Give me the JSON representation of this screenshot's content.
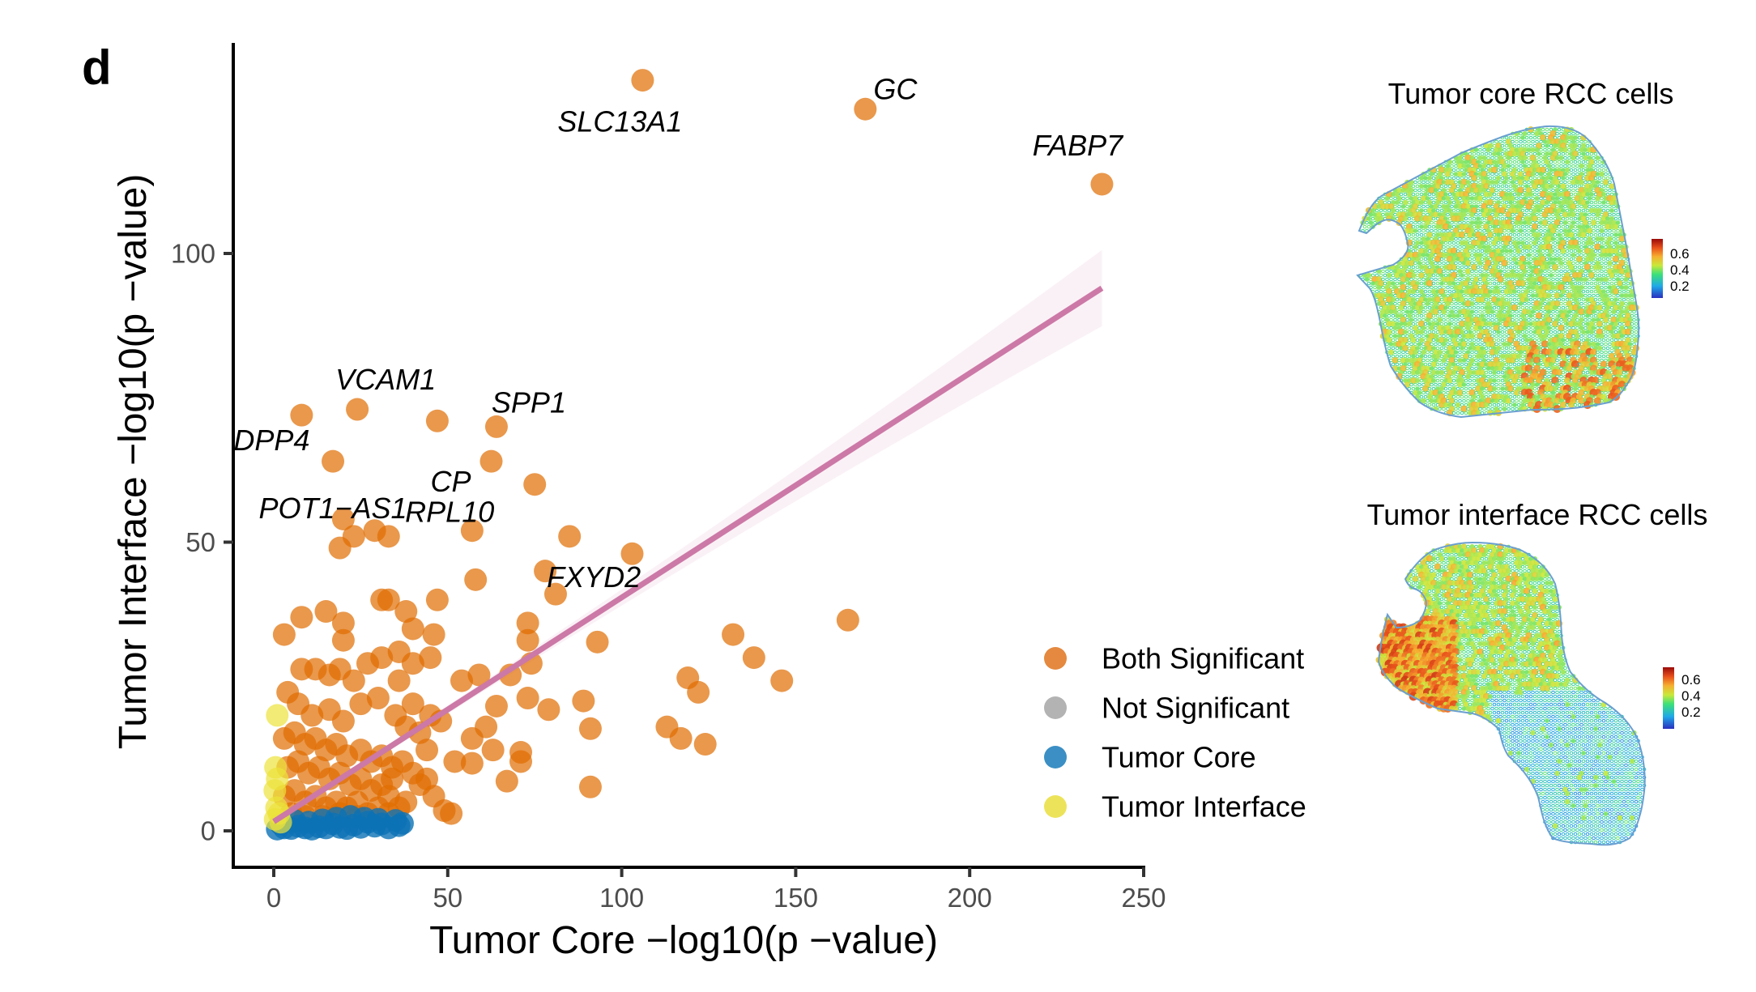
{
  "panel_letter": "d",
  "chart_data": {
    "type": "scatter",
    "xlabel": "Tumor Core  −log10(p −value)",
    "ylabel": "Tumor Interface  −log10(p −value)",
    "xlim": [
      -12,
      250
    ],
    "ylim": [
      -6,
      136
    ],
    "xticks": [
      0,
      50,
      100,
      150,
      200,
      250
    ],
    "yticks": [
      0,
      50,
      100
    ],
    "grid": false,
    "legend_placement": "right",
    "legend": [
      {
        "label": "Both Significant",
        "color": "#e4893f"
      },
      {
        "label": "Not Significant",
        "color": "#b3b3b3"
      },
      {
        "label": "Tumor Core",
        "color": "#3b8fc4"
      },
      {
        "label": "Tumor Interface",
        "color": "#ece35a"
      }
    ],
    "fit_line": {
      "color": "#cc79a7",
      "x": [
        0,
        238
      ],
      "y": [
        1.6,
        94
      ],
      "ci_at_end": [
        88,
        100
      ]
    },
    "labeled_genes": [
      {
        "gene": "SLC13A1",
        "x": 106,
        "y": 130
      },
      {
        "gene": "GC",
        "x": 170,
        "y": 125
      },
      {
        "gene": "FABP7",
        "x": 238,
        "y": 112
      },
      {
        "gene": "VCAM1",
        "x": 24,
        "y": 73
      },
      {
        "gene": "DPP4",
        "x": 8,
        "y": 72
      },
      {
        "gene": "SPP1",
        "x": 64,
        "y": 70
      },
      {
        "gene": "POT1−AS1",
        "x": 17,
        "y": 64
      },
      {
        "gene": "CP",
        "x": 62.5,
        "y": 64
      },
      {
        "gene": "RPL10",
        "x": 75,
        "y": 60
      },
      {
        "gene": "FXYD2",
        "x": 85,
        "y": 51
      }
    ],
    "series": [
      {
        "name": "Both Significant",
        "color": "#e06c00",
        "points": [
          [
            106,
            130
          ],
          [
            170,
            125
          ],
          [
            238,
            112
          ],
          [
            24,
            73
          ],
          [
            8,
            72
          ],
          [
            47,
            71
          ],
          [
            64,
            70
          ],
          [
            17,
            64
          ],
          [
            62.5,
            64
          ],
          [
            75,
            60
          ],
          [
            85,
            51
          ],
          [
            103,
            48
          ],
          [
            165,
            36.5
          ],
          [
            132,
            34
          ],
          [
            138,
            30
          ],
          [
            146,
            26
          ],
          [
            119,
            26.5
          ],
          [
            122,
            24
          ],
          [
            113,
            18
          ],
          [
            117,
            16
          ],
          [
            124,
            15
          ],
          [
            89,
            22.5
          ],
          [
            91,
            17.7
          ],
          [
            91,
            7.6
          ],
          [
            93,
            32.7
          ],
          [
            78,
            45
          ],
          [
            81,
            41
          ],
          [
            57,
            52
          ],
          [
            58,
            43.5
          ],
          [
            73,
            36
          ],
          [
            73,
            33
          ],
          [
            74,
            29
          ],
          [
            54,
            26
          ],
          [
            59,
            27
          ],
          [
            68,
            27
          ],
          [
            73,
            23
          ],
          [
            79,
            21
          ],
          [
            64,
            21.6
          ],
          [
            61,
            18
          ],
          [
            57,
            16
          ],
          [
            63,
            14
          ],
          [
            71,
            13.6
          ],
          [
            71,
            12
          ],
          [
            67,
            8.6
          ],
          [
            49,
            3.5
          ],
          [
            51,
            3
          ],
          [
            52,
            12
          ],
          [
            57,
            11.7
          ],
          [
            20,
            54
          ],
          [
            19,
            49
          ],
          [
            23,
            51
          ],
          [
            29,
            52
          ],
          [
            33,
            51
          ],
          [
            3,
            34
          ],
          [
            8,
            37
          ],
          [
            15,
            38
          ],
          [
            20,
            36
          ],
          [
            20,
            33
          ],
          [
            31,
            40
          ],
          [
            33,
            40
          ],
          [
            38,
            38
          ],
          [
            47,
            40
          ],
          [
            46,
            34
          ],
          [
            40,
            35
          ],
          [
            36,
            31
          ],
          [
            31,
            30
          ],
          [
            27,
            29
          ],
          [
            40,
            29
          ],
          [
            45,
            30
          ],
          [
            8,
            28
          ],
          [
            12,
            28
          ],
          [
            16,
            27
          ],
          [
            19,
            28
          ],
          [
            23,
            26
          ],
          [
            25,
            22
          ],
          [
            4,
            24
          ],
          [
            7,
            22
          ],
          [
            11,
            20
          ],
          [
            16,
            21
          ],
          [
            20,
            19
          ],
          [
            30,
            23
          ],
          [
            35,
            20
          ],
          [
            38,
            18
          ],
          [
            42,
            17
          ],
          [
            44,
            14
          ],
          [
            45,
            20
          ],
          [
            48,
            19
          ],
          [
            40,
            22
          ],
          [
            36,
            26
          ],
          [
            3,
            16
          ],
          [
            6,
            17
          ],
          [
            9,
            15
          ],
          [
            12,
            16
          ],
          [
            15,
            14
          ],
          [
            18,
            15
          ],
          [
            21,
            13
          ],
          [
            25,
            14
          ],
          [
            28,
            12
          ],
          [
            31,
            13
          ],
          [
            34,
            11
          ],
          [
            37,
            12
          ],
          [
            40,
            10
          ],
          [
            42,
            8
          ],
          [
            44,
            9
          ],
          [
            46,
            6
          ],
          [
            33,
            6
          ],
          [
            38,
            5
          ],
          [
            4,
            11
          ],
          [
            7,
            12
          ],
          [
            10,
            10
          ],
          [
            13,
            11
          ],
          [
            16,
            9
          ],
          [
            19,
            10
          ],
          [
            22,
            8
          ],
          [
            25,
            9
          ],
          [
            28,
            7
          ],
          [
            31,
            8
          ],
          [
            34,
            9
          ],
          [
            36,
            4
          ],
          [
            3,
            6
          ],
          [
            6,
            7
          ],
          [
            9,
            5
          ],
          [
            12,
            6
          ],
          [
            15,
            4
          ],
          [
            18,
            5
          ],
          [
            21,
            4
          ],
          [
            24,
            5
          ],
          [
            27,
            3
          ],
          [
            30,
            4
          ],
          [
            33,
            3
          ],
          [
            5,
            3
          ],
          [
            9,
            2.5
          ],
          [
            14,
            2.5
          ],
          [
            19,
            3
          ],
          [
            24,
            2.5
          ]
        ]
      },
      {
        "name": "Tumor Core",
        "color": "#0b72b5",
        "points": [
          [
            1,
            0.3
          ],
          [
            3,
            0.5
          ],
          [
            5,
            0.4
          ],
          [
            7,
            0.8
          ],
          [
            9,
            0.5
          ],
          [
            11,
            0.3
          ],
          [
            13,
            0.7
          ],
          [
            15,
            0.5
          ],
          [
            17,
            1.2
          ],
          [
            19,
            0.6
          ],
          [
            21,
            0.4
          ],
          [
            23,
            1
          ],
          [
            25,
            0.6
          ],
          [
            27,
            1.5
          ],
          [
            29,
            0.8
          ],
          [
            31,
            1.2
          ],
          [
            33,
            0.5
          ],
          [
            35,
            1.8
          ],
          [
            36,
            0.9
          ],
          [
            37,
            1.3
          ],
          [
            2,
            1.2
          ],
          [
            6,
            1.8
          ],
          [
            10,
            1.5
          ],
          [
            14,
            1.9
          ],
          [
            18,
            2.2
          ],
          [
            22,
            2.5
          ],
          [
            26,
            2.2
          ],
          [
            30,
            2
          ]
        ]
      },
      {
        "name": "Tumor Interface",
        "color": "#ece33a",
        "points": [
          [
            1,
            20
          ],
          [
            0.5,
            11
          ],
          [
            0.3,
            7
          ],
          [
            0.8,
            4
          ],
          [
            1.5,
            3
          ],
          [
            0.4,
            2
          ],
          [
            2,
            1.5
          ],
          [
            1,
            9
          ]
        ]
      }
    ]
  },
  "maps": [
    {
      "title": "Tumor core RCC cells",
      "colorbar_ticks": [
        "0.6",
        "0.4",
        "0.2"
      ]
    },
    {
      "title": "Tumor interface RCC cells",
      "colorbar_ticks": [
        "0.6",
        "0.4",
        "0.2"
      ]
    }
  ]
}
